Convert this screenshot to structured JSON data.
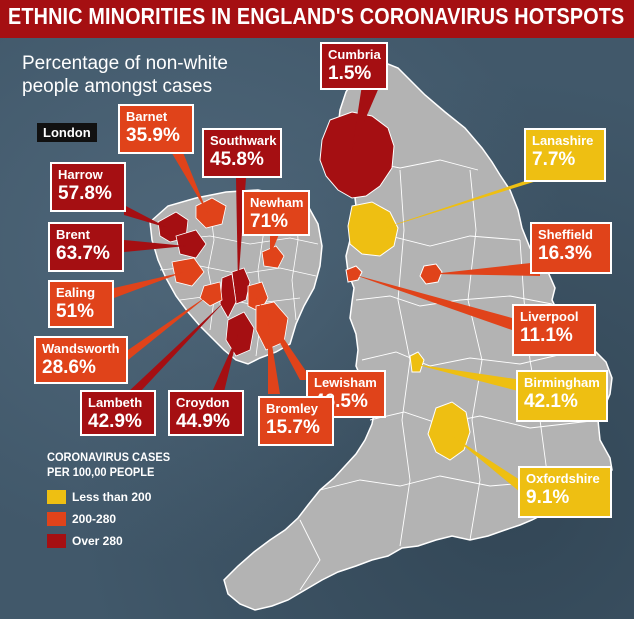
{
  "title": "ETHNIC MINORITIES IN ENGLAND'S CORONAVIRUS HOTSPOTS",
  "subtitle": "Percentage of non-white people amongst cases",
  "inset_label": "London",
  "colors": {
    "low": "#eebf12",
    "mid": "#e0431a",
    "high": "#a50f12",
    "land": "#b3b3b3",
    "sea": "#41586a"
  },
  "areas": [
    {
      "key": "cumbria",
      "name": "Cumbria",
      "percent": "1.5%",
      "band": "high"
    },
    {
      "key": "lanashire",
      "name": "Lanashire",
      "percent": "7.7%",
      "band": "low"
    },
    {
      "key": "sheffield",
      "name": "Sheffield",
      "percent": "16.3%",
      "band": "mid"
    },
    {
      "key": "liverpool",
      "name": "Liverpool",
      "percent": "11.1%",
      "band": "mid"
    },
    {
      "key": "birmingham",
      "name": "Birmingham",
      "percent": "42.1%",
      "band": "low"
    },
    {
      "key": "oxfordshire",
      "name": "Oxfordshire",
      "percent": "9.1%",
      "band": "low"
    },
    {
      "key": "barnet",
      "name": "Barnet",
      "percent": "35.9%",
      "band": "mid"
    },
    {
      "key": "southwark",
      "name": "Southwark",
      "percent": "45.8%",
      "band": "high"
    },
    {
      "key": "harrow",
      "name": "Harrow",
      "percent": "57.8%",
      "band": "high"
    },
    {
      "key": "newham",
      "name": "Newham",
      "percent": "71%",
      "band": "mid"
    },
    {
      "key": "brent",
      "name": "Brent",
      "percent": "63.7%",
      "band": "high"
    },
    {
      "key": "ealing",
      "name": "Ealing",
      "percent": "51%",
      "band": "mid"
    },
    {
      "key": "wandsworth",
      "name": "Wandsworth",
      "percent": "28.6%",
      "band": "mid"
    },
    {
      "key": "lewisham",
      "name": "Lewisham",
      "percent": "46.5%",
      "band": "mid"
    },
    {
      "key": "lambeth",
      "name": "Lambeth",
      "percent": "42.9%",
      "band": "high"
    },
    {
      "key": "croydon",
      "name": "Croydon",
      "percent": "44.9%",
      "band": "high"
    },
    {
      "key": "bromley",
      "name": "Bromley",
      "percent": "15.7%",
      "band": "mid"
    }
  ],
  "legend": {
    "title_line1": "CORONAVIRUS CASES",
    "title_line2": "PER 100,00 PEOPLE",
    "items": [
      {
        "label": "Less than 200",
        "band": "low"
      },
      {
        "label": "200-280",
        "band": "mid"
      },
      {
        "label": "Over 280",
        "band": "high"
      }
    ]
  }
}
